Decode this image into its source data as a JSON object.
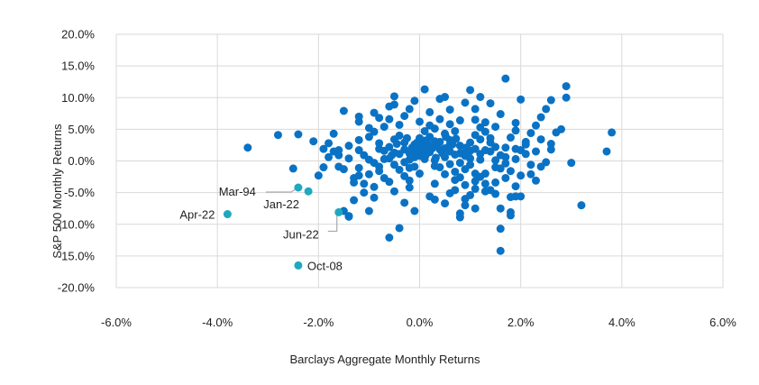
{
  "chart_data": {
    "type": "scatter",
    "xlabel": "Barclays Aggregate Monthly Returns",
    "ylabel": "S&P 500 Monthly Returns",
    "xlim": [
      -6,
      6
    ],
    "ylim": [
      -20,
      20
    ],
    "x_ticks": [
      -6,
      -4,
      -2,
      0,
      2,
      4,
      6
    ],
    "y_ticks": [
      20,
      15,
      10,
      5,
      0,
      -5,
      -10,
      -15,
      -20
    ],
    "x_tick_labels": [
      "-6.0%",
      "-4.0%",
      "-2.0%",
      "0.0%",
      "2.0%",
      "4.0%",
      "6.0%"
    ],
    "y_tick_labels": [
      "20.0%",
      "15.0%",
      "10.0%",
      "5.0%",
      "0.0%",
      "-5.0%",
      "-10.0%",
      "-15.0%",
      "-20.0%"
    ],
    "grid": true,
    "colors": {
      "main": "#0a72c4",
      "highlight": "#1fa8bf",
      "grid": "#d9d9d9",
      "leader": "#9a9a9a"
    },
    "highlights": [
      {
        "label": "Mar-94",
        "x": -2.4,
        "y": -4.2
      },
      {
        "label": "Jan-22",
        "x": -2.2,
        "y": -4.8
      },
      {
        "label": "Apr-22",
        "x": -3.8,
        "y": -8.4
      },
      {
        "label": "Jun-22",
        "x": -1.6,
        "y": -8.1
      },
      {
        "label": "Oct-08",
        "x": -2.4,
        "y": -16.5
      }
    ],
    "points": [
      [
        -3.4,
        2.1
      ],
      [
        -2.8,
        4.1
      ],
      [
        -2.4,
        4.2
      ],
      [
        -2.5,
        -1.2
      ],
      [
        -1.8,
        2.8
      ],
      [
        -1.7,
        1.5
      ],
      [
        -1.6,
        -0.9
      ],
      [
        -1.5,
        -1.3
      ],
      [
        -1.4,
        -8.7
      ],
      [
        -1.4,
        -8.8
      ],
      [
        -1.3,
        -6.2
      ],
      [
        -1.5,
        -7.9
      ],
      [
        -1.3,
        -3.4
      ],
      [
        -1.2,
        -2.3
      ],
      [
        -1.1,
        -5.0
      ],
      [
        -1.0,
        -7.9
      ],
      [
        -0.9,
        -5.8
      ],
      [
        -0.6,
        -12.1
      ],
      [
        -0.4,
        -10.6
      ],
      [
        -0.3,
        -6.6
      ],
      [
        -0.1,
        -7.9
      ],
      [
        -0.5,
        -4.8
      ],
      [
        -0.2,
        -3.1
      ],
      [
        0.0,
        -2.0
      ],
      [
        -1.5,
        7.9
      ],
      [
        -1.2,
        6.2
      ],
      [
        -1.0,
        5.2
      ],
      [
        -0.8,
        6.8
      ],
      [
        -0.6,
        8.6
      ],
      [
        -0.5,
        8.9
      ],
      [
        -0.3,
        7.1
      ],
      [
        -0.2,
        8.2
      ],
      [
        0.1,
        11.3
      ],
      [
        0.4,
        9.8
      ],
      [
        0.2,
        7.7
      ],
      [
        0.6,
        8.1
      ],
      [
        0.8,
        6.4
      ],
      [
        1.0,
        11.2
      ],
      [
        1.2,
        10.1
      ],
      [
        1.4,
        9.1
      ],
      [
        1.7,
        13.0
      ],
      [
        2.0,
        9.7
      ],
      [
        2.5,
        8.2
      ],
      [
        2.6,
        9.6
      ],
      [
        2.9,
        10.0
      ],
      [
        2.9,
        11.8
      ],
      [
        3.0,
        -0.3
      ],
      [
        3.2,
        -7.0
      ],
      [
        3.7,
        1.5
      ],
      [
        3.8,
        4.5
      ],
      [
        2.7,
        4.5
      ],
      [
        2.6,
        1.8
      ],
      [
        2.5,
        -0.2
      ],
      [
        2.4,
        -0.9
      ],
      [
        2.2,
        -2.1
      ],
      [
        2.0,
        -5.6
      ],
      [
        1.8,
        -5.7
      ],
      [
        1.9,
        -5.6
      ],
      [
        1.6,
        -7.5
      ],
      [
        1.8,
        -8.1
      ],
      [
        1.8,
        -8.6
      ],
      [
        1.6,
        -10.7
      ],
      [
        1.6,
        -14.2
      ],
      [
        1.5,
        -5.2
      ],
      [
        1.3,
        -4.8
      ],
      [
        1.4,
        -4.6
      ],
      [
        1.1,
        -4.4
      ],
      [
        0.9,
        -7.0
      ],
      [
        0.8,
        -8.3
      ],
      [
        0.8,
        -8.9
      ],
      [
        0.5,
        -6.7
      ],
      [
        0.6,
        -5.1
      ],
      [
        0.3,
        -6.1
      ],
      [
        0.2,
        -5.6
      ],
      [
        0.9,
        -6.0
      ],
      [
        1.1,
        -7.5
      ],
      [
        1.2,
        -2.5
      ],
      [
        1.3,
        -3.6
      ],
      [
        1.5,
        -3.4
      ],
      [
        1.7,
        -2.7
      ],
      [
        -2.0,
        -2.3
      ],
      [
        -1.9,
        -1.0
      ],
      [
        -1.8,
        0.6
      ],
      [
        -1.6,
        1.7
      ],
      [
        -1.4,
        2.4
      ],
      [
        -1.2,
        3.3
      ],
      [
        -1.0,
        3.8
      ],
      [
        -0.9,
        4.6
      ],
      [
        -0.8,
        2.8
      ],
      [
        -0.7,
        1.6
      ],
      [
        -0.6,
        0.4
      ],
      [
        -0.5,
        -0.6
      ],
      [
        -0.4,
        -1.4
      ],
      [
        -0.3,
        -2.4
      ],
      [
        -0.2,
        1.2
      ],
      [
        -0.1,
        2.6
      ],
      [
        0.0,
        3.6
      ],
      [
        0.1,
        4.7
      ],
      [
        0.2,
        5.6
      ],
      [
        0.3,
        3.1
      ],
      [
        0.4,
        1.8
      ],
      [
        0.5,
        0.6
      ],
      [
        0.6,
        -0.5
      ],
      [
        0.7,
        -1.7
      ],
      [
        0.8,
        -2.6
      ],
      [
        0.9,
        1.4
      ],
      [
        1.0,
        2.9
      ],
      [
        1.1,
        4.1
      ],
      [
        1.2,
        5.3
      ],
      [
        1.3,
        6.1
      ],
      [
        1.4,
        3.6
      ],
      [
        1.5,
        2.2
      ],
      [
        1.6,
        0.9
      ],
      [
        1.7,
        -0.4
      ],
      [
        1.8,
        -1.6
      ],
      [
        1.9,
        0.3
      ],
      [
        2.0,
        1.7
      ],
      [
        2.1,
        3.0
      ],
      [
        2.2,
        4.4
      ],
      [
        2.3,
        5.6
      ],
      [
        -0.7,
        5.4
      ],
      [
        -0.6,
        6.6
      ],
      [
        -0.4,
        4.0
      ],
      [
        -0.3,
        2.9
      ],
      [
        -0.2,
        0.2
      ],
      [
        -0.1,
        -0.9
      ],
      [
        0.0,
        0.8
      ],
      [
        0.1,
        2.3
      ],
      [
        0.2,
        3.8
      ],
      [
        0.3,
        5.1
      ],
      [
        0.4,
        6.6
      ],
      [
        0.5,
        4.3
      ],
      [
        0.6,
        2.6
      ],
      [
        0.7,
        1.0
      ],
      [
        0.8,
        -0.3
      ],
      [
        0.9,
        -1.3
      ],
      [
        1.0,
        0.4
      ],
      [
        1.1,
        1.9
      ],
      [
        1.2,
        3.4
      ],
      [
        1.3,
        4.6
      ],
      [
        1.4,
        1.5
      ],
      [
        1.5,
        0.1
      ],
      [
        1.6,
        -1.2
      ],
      [
        1.7,
        2.1
      ],
      [
        1.8,
        3.7
      ],
      [
        1.9,
        4.8
      ],
      [
        2.1,
        1.1
      ],
      [
        2.2,
        -0.6
      ],
      [
        -1.1,
        0.9
      ],
      [
        -0.9,
        -0.3
      ],
      [
        -0.8,
        -1.6
      ],
      [
        -0.7,
        -2.7
      ],
      [
        -0.6,
        2.2
      ],
      [
        -0.5,
        3.4
      ],
      [
        -0.4,
        1.1
      ],
      [
        -0.3,
        -0.2
      ],
      [
        -0.2,
        -1.1
      ],
      [
        -0.1,
        0.6
      ],
      [
        0.0,
        1.9
      ],
      [
        0.1,
        3.2
      ],
      [
        0.2,
        1.4
      ],
      [
        0.3,
        0.1
      ],
      [
        0.4,
        -1.0
      ],
      [
        0.5,
        2.0
      ],
      [
        0.6,
        3.3
      ],
      [
        0.7,
        4.7
      ],
      [
        0.8,
        2.4
      ],
      [
        0.9,
        0.8
      ],
      [
        1.0,
        -0.6
      ],
      [
        1.1,
        -2.0
      ],
      [
        1.2,
        0.2
      ],
      [
        1.3,
        1.7
      ],
      [
        1.4,
        2.9
      ],
      [
        -1.3,
        -2.7
      ],
      [
        -1.1,
        -3.6
      ],
      [
        -0.9,
        -4.1
      ],
      [
        -0.8,
        -0.9
      ],
      [
        -0.7,
        0.3
      ],
      [
        -0.5,
        1.3
      ],
      [
        -0.3,
        1.8
      ],
      [
        -0.1,
        1.3
      ],
      [
        0.1,
        0.3
      ],
      [
        0.3,
        -0.8
      ],
      [
        0.5,
        -2.1
      ],
      [
        0.7,
        -3.0
      ],
      [
        0.9,
        -3.8
      ],
      [
        1.1,
        -3.2
      ],
      [
        1.3,
        -2.0
      ],
      [
        1.5,
        -1.0
      ],
      [
        1.7,
        0.6
      ],
      [
        1.9,
        1.9
      ],
      [
        2.1,
        2.6
      ],
      [
        2.3,
        1.5
      ],
      [
        2.4,
        3.4
      ],
      [
        2.6,
        2.7
      ],
      [
        0.0,
        2.4
      ],
      [
        0.05,
        1.6
      ],
      [
        0.15,
        2.8
      ],
      [
        0.25,
        2.0
      ],
      [
        0.35,
        2.5
      ],
      [
        0.45,
        1.2
      ],
      [
        0.55,
        1.9
      ],
      [
        0.65,
        2.6
      ],
      [
        -0.05,
        2.9
      ],
      [
        -0.15,
        2.1
      ],
      [
        -0.25,
        3.6
      ],
      [
        0.12,
        0.9
      ],
      [
        0.32,
        0.5
      ],
      [
        0.52,
        3.8
      ],
      [
        0.72,
        3.5
      ],
      [
        0.92,
        2.1
      ],
      [
        -0.45,
        2.7
      ],
      [
        -0.55,
        0.9
      ],
      [
        0.0,
        1.2
      ],
      [
        0.2,
        2.2
      ],
      [
        0.4,
        3.0
      ],
      [
        0.6,
        1.5
      ],
      [
        0.8,
        1.2
      ],
      [
        1.0,
        1.6
      ],
      [
        1.2,
        1.1
      ],
      [
        -0.8,
        1.9
      ],
      [
        -1.0,
        0.2
      ],
      [
        -1.2,
        1.7
      ],
      [
        -1.4,
        0.4
      ],
      [
        -1.6,
        0.9
      ],
      [
        2.8,
        5.0
      ],
      [
        2.4,
        6.9
      ],
      [
        1.9,
        6.0
      ],
      [
        1.6,
        7.4
      ],
      [
        1.1,
        8.2
      ],
      [
        0.9,
        9.2
      ],
      [
        0.5,
        10.1
      ],
      [
        -0.1,
        9.5
      ],
      [
        -0.5,
        10.2
      ],
      [
        -0.9,
        7.6
      ],
      [
        -1.2,
        7.0
      ],
      [
        -1.7,
        4.3
      ],
      [
        -2.1,
        3.1
      ],
      [
        -1.9,
        1.9
      ],
      [
        0.3,
        -3.6
      ],
      [
        0.7,
        -4.6
      ],
      [
        1.0,
        -5.4
      ],
      [
        -0.2,
        -4.2
      ],
      [
        -0.6,
        -3.3
      ],
      [
        -1.0,
        -2.1
      ],
      [
        -1.2,
        -1.1
      ],
      [
        2.3,
        -3.1
      ],
      [
        1.9,
        -4.0
      ],
      [
        2.0,
        -2.3
      ],
      [
        1.1,
        6.5
      ],
      [
        1.5,
        5.4
      ],
      [
        0.6,
        5.8
      ],
      [
        0.0,
        6.2
      ],
      [
        -0.4,
        5.7
      ]
    ]
  }
}
